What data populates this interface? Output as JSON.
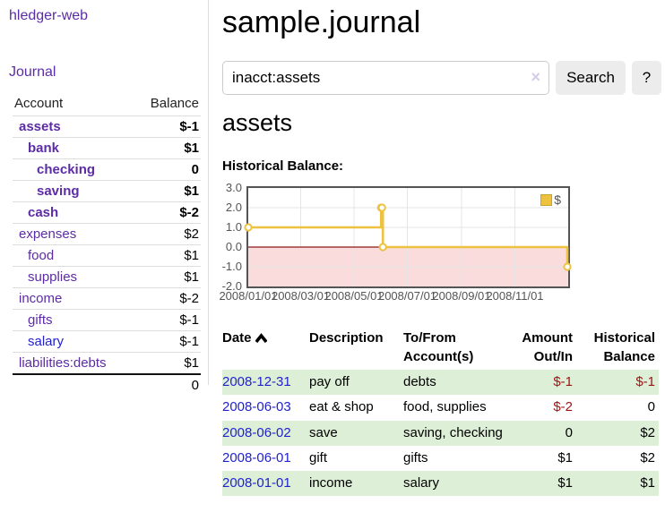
{
  "app": {
    "title": "hledger-web"
  },
  "colors": {
    "purple": "#5c2ca6",
    "blue": "#2222cc",
    "negative": "#9a1414",
    "negative_soft": "#c06868",
    "row_green": "#deefd8",
    "chart_yellow": "#EDC240"
  },
  "sidebar": {
    "journal_link": "Journal",
    "account_header": "Account",
    "balance_header": "Balance",
    "accounts": [
      {
        "label": "assets",
        "balance": "$-1",
        "indent": 0,
        "bold": true,
        "neg": "strong",
        "link": "purple"
      },
      {
        "label": "bank",
        "balance": "$1",
        "indent": 1,
        "bold": true,
        "neg": "none",
        "link": "purple"
      },
      {
        "label": "checking",
        "balance": "0",
        "indent": 2,
        "bold": true,
        "neg": "none",
        "link": "purple"
      },
      {
        "label": "saving",
        "balance": "$1",
        "indent": 2,
        "bold": true,
        "neg": "none",
        "link": "purple"
      },
      {
        "label": "cash",
        "balance": "$-2",
        "indent": 1,
        "bold": true,
        "neg": "strong",
        "link": "purple"
      },
      {
        "label": "expenses",
        "balance": "$2",
        "indent": 0,
        "bold": false,
        "neg": "none",
        "link": "purple"
      },
      {
        "label": "food",
        "balance": "$1",
        "indent": 1,
        "bold": false,
        "neg": "none",
        "link": "purple"
      },
      {
        "label": "supplies",
        "balance": "$1",
        "indent": 1,
        "bold": false,
        "neg": "none",
        "link": "purple"
      },
      {
        "label": "income",
        "balance": "$-2",
        "indent": 0,
        "bold": false,
        "neg": "soft",
        "link": "purple"
      },
      {
        "label": "gifts",
        "balance": "$-1",
        "indent": 1,
        "bold": false,
        "neg": "soft",
        "link": "purple"
      },
      {
        "label": "salary",
        "balance": "$-1",
        "indent": 1,
        "bold": false,
        "neg": "soft",
        "link": "blue"
      },
      {
        "label": "liabilities:debts",
        "balance": "$1",
        "indent": 0,
        "bold": false,
        "neg": "none",
        "link": "purple"
      }
    ],
    "total": "0"
  },
  "main": {
    "title": "sample.journal",
    "search": {
      "value": "inacct:assets",
      "clear_icon": "×",
      "button_label": "Search",
      "help_label": "?"
    },
    "account_heading": "assets"
  },
  "register": {
    "headers": [
      {
        "line1": "Date",
        "line2": "",
        "align": "left",
        "sorted": "asc"
      },
      {
        "line1": "Description",
        "line2": "",
        "align": "left"
      },
      {
        "line1": "To/From",
        "line2": "Account(s)",
        "align": "left"
      },
      {
        "line1": "Amount",
        "line2": "Out/In",
        "align": "right"
      },
      {
        "line1": "Historical",
        "line2": "Balance",
        "align": "right"
      }
    ],
    "rows": [
      {
        "date": "2008-12-31",
        "description": "pay off",
        "accounts": "debts",
        "amount": "$-1",
        "amount_neg": true,
        "balance": "$-1",
        "balance_neg": true,
        "shaded": true
      },
      {
        "date": "2008-06-03",
        "description": "eat & shop",
        "accounts": "food, supplies",
        "amount": "$-2",
        "amount_neg": true,
        "balance": "0",
        "balance_neg": false,
        "shaded": false
      },
      {
        "date": "2008-06-02",
        "description": "save",
        "accounts": "saving, checking",
        "amount": "0",
        "amount_neg": false,
        "balance": "$2",
        "balance_neg": false,
        "shaded": true
      },
      {
        "date": "2008-06-01",
        "description": "gift",
        "accounts": "gifts",
        "amount": "$1",
        "amount_neg": false,
        "balance": "$2",
        "balance_neg": false,
        "shaded": false
      },
      {
        "date": "2008-01-01",
        "description": "income",
        "accounts": "salary",
        "amount": "$1",
        "amount_neg": false,
        "balance": "$1",
        "balance_neg": false,
        "shaded": true
      }
    ]
  },
  "chart_data": {
    "type": "line",
    "title": "Historical Balance:",
    "step": true,
    "series": [
      {
        "name": "$",
        "color": "#EDC240",
        "points": [
          {
            "date": "2008-01-01",
            "value": 1
          },
          {
            "date": "2008-06-01",
            "value": 2
          },
          {
            "date": "2008-06-02",
            "value": 2
          },
          {
            "date": "2008-06-03",
            "value": 0
          },
          {
            "date": "2008-12-31",
            "value": -1
          }
        ]
      }
    ],
    "x_range": [
      "2008-01-01",
      "2009-01-01"
    ],
    "x_ticks": [
      "2008/01/01",
      "2008/03/01",
      "2008/05/01",
      "2008/07/01",
      "2008/09/01",
      "2008/11/01"
    ],
    "y_ticks": [
      "3.0",
      "2.0",
      "1.0",
      "0.0",
      "-1.0",
      "-2.0"
    ],
    "ylim": [
      -2,
      3
    ],
    "grid": true,
    "grid_color": "#e6e6e6",
    "negative_fill": "#fadcdc",
    "zero_line_color": "#8b1a1a",
    "border_color": "#545454",
    "legend_position": "top-right"
  }
}
